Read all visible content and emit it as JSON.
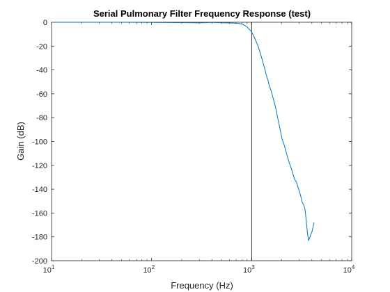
{
  "chart_data": {
    "type": "line",
    "title": "Serial Pulmonary Filter Frequency Response (test)",
    "xlabel": "Frequency (Hz)",
    "ylabel": "Gain (dB)",
    "xscale": "log",
    "xlim": [
      10,
      10000
    ],
    "ylim": [
      -200,
      0
    ],
    "x_ticks": [
      {
        "value": 10,
        "base": "10",
        "exp": "1"
      },
      {
        "value": 100,
        "base": "10",
        "exp": "2"
      },
      {
        "value": 1000,
        "base": "10",
        "exp": "3"
      },
      {
        "value": 10000,
        "base": "10",
        "exp": "4"
      }
    ],
    "y_ticks": [
      0,
      -20,
      -40,
      -60,
      -80,
      -100,
      -120,
      -140,
      -160,
      -180,
      -200
    ],
    "grid": false,
    "vertical_line_x": 1000,
    "series": [
      {
        "color": "#0072BD",
        "x": [
          10,
          50,
          100,
          200,
          300,
          400,
          500,
          600,
          700,
          750,
          800,
          850,
          900,
          950,
          1000,
          1040,
          1080,
          1120,
          1160,
          1200,
          1250,
          1300,
          1350,
          1400,
          1450,
          1500,
          1560,
          1620,
          1680,
          1740,
          1800,
          1870,
          1940,
          2000,
          2050,
          2100,
          2200,
          2300,
          2400,
          2500,
          2600,
          2700,
          2800,
          2900,
          3000,
          3100,
          3200,
          3300,
          3400,
          3500,
          3600,
          3700,
          3800,
          3900,
          4000,
          4100,
          4200
        ],
        "y": [
          0,
          0,
          -0.2,
          -0.3,
          -0.5,
          -0.2,
          -0.4,
          -0.6,
          -0.8,
          -1,
          -1.5,
          -2.5,
          -4,
          -6,
          -8,
          -11,
          -14,
          -17,
          -20,
          -24,
          -29,
          -34,
          -39,
          -44,
          -48,
          -53,
          -57,
          -62,
          -67,
          -72,
          -78,
          -85,
          -91,
          -97,
          -100,
          -102,
          -108,
          -114,
          -119,
          -123,
          -128,
          -132,
          -134,
          -138,
          -142,
          -146,
          -151,
          -153,
          -156,
          -165,
          -176,
          -183,
          -181,
          -178,
          -176,
          -172,
          -168
        ]
      }
    ]
  }
}
